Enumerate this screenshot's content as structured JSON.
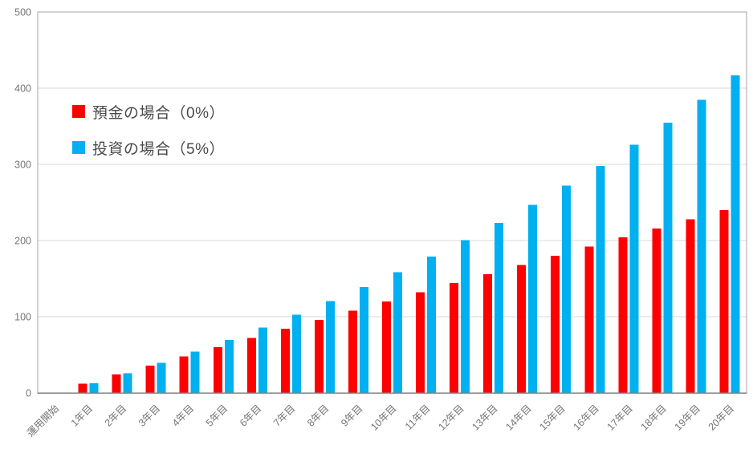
{
  "chart_data": {
    "type": "bar",
    "title": "",
    "xlabel": "",
    "ylabel": "",
    "categories": [
      "運用開始",
      "1年目",
      "2年目",
      "3年目",
      "4年目",
      "5年目",
      "6年目",
      "7年目",
      "8年目",
      "9年目",
      "10年目",
      "11年目",
      "12年目",
      "13年目",
      "14年目",
      "15年目",
      "16年目",
      "17年目",
      "18年目",
      "19年目",
      "20年目"
    ],
    "series": [
      {
        "name": "預金の場合（0%）",
        "color": "#FF0000",
        "values": [
          0,
          12,
          24,
          36,
          48,
          60,
          72,
          84,
          96,
          108,
          120,
          132,
          144,
          156,
          168,
          180,
          192,
          204,
          216,
          228,
          240
        ]
      },
      {
        "name": "投資の場合（5%）",
        "color": "#00B0F0",
        "values": [
          0,
          12.6,
          25.8,
          39.7,
          54.3,
          69.6,
          85.7,
          102.6,
          120.3,
          138.9,
          158.5,
          179.0,
          200.6,
          223.2,
          246.9,
          271.9,
          298.1,
          325.6,
          354.5,
          384.8,
          416.6
        ]
      }
    ],
    "ylim": [
      0,
      500
    ],
    "yticks": [
      0,
      100,
      200,
      300,
      400,
      500
    ],
    "grid": "horizontal",
    "legend_position": "inside-top-left"
  },
  "styles": {
    "background": "#FFFFFF",
    "grid_color": "#D9D9D9",
    "plot_border_color": "#A6A6A6",
    "axis_line_color": "#7F7F7F",
    "tick_label_color": "#757575",
    "legend_text_color": "#4A4A4A"
  }
}
